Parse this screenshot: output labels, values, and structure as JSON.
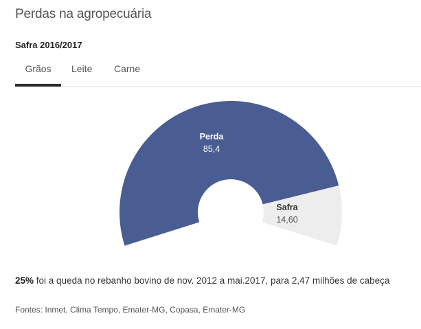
{
  "header": {
    "title": "Perdas na agropecuária",
    "subtitle": "Safra 2016/2017"
  },
  "tabs": [
    {
      "label": "Grãos",
      "active": true
    },
    {
      "label": "Leite",
      "active": false
    },
    {
      "label": "Carne",
      "active": false
    }
  ],
  "colors": {
    "perda": "#4a5d92",
    "safra": "#ededed",
    "tab_active": "#2b2b2b"
  },
  "chart_data": {
    "type": "pie",
    "subtype": "semi-donut",
    "title": "Safra 2016/2017 - Grãos",
    "categories": [
      "Perda",
      "Safra"
    ],
    "values": [
      85.4,
      14.6
    ],
    "value_labels": [
      "85,4",
      "14,60"
    ],
    "colors": [
      "#4a5d92",
      "#ededed"
    ],
    "legend": "none (inline labels)"
  },
  "labels": {
    "perda_name": "Perda",
    "perda_value": "85,4",
    "safra_name": "Safra",
    "safra_value": "14,60"
  },
  "note": {
    "highlight": "25%",
    "text": " foi a queda no rebanho bovino de nov. 2012 a mai.2017, para 2,47 milhões de cabeça"
  },
  "source": "Fontes: Inmet, Clima Tempo, Emater-MG, Copasa, Emater-MG"
}
